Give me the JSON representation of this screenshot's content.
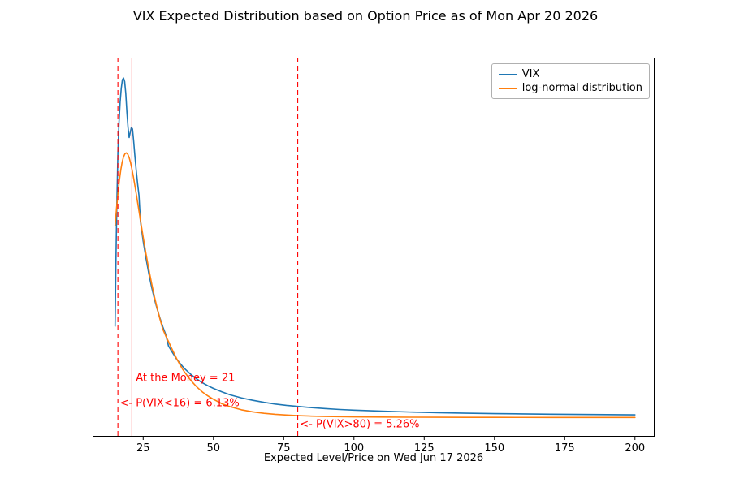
{
  "chart_data": {
    "type": "line",
    "title": "VIX Expected Distribution based on Option Price as of Mon Apr 20 2026",
    "xlabel": "Expected Level/Price on Wed Jun 17 2026",
    "ylabel": "",
    "xlim": [
      7,
      207
    ],
    "ylim": [
      -0.055,
      1.06
    ],
    "x_ticks": [
      25,
      50,
      75,
      100,
      125,
      150,
      175,
      200
    ],
    "grid": false,
    "legend_position": "upper right",
    "series": [
      {
        "name": "VIX",
        "color": "#1f77b4",
        "points": [
          [
            15,
            0.27
          ],
          [
            15.3,
            0.46
          ],
          [
            15.6,
            0.62
          ],
          [
            16,
            0.78
          ],
          [
            16.4,
            0.87
          ],
          [
            16.8,
            0.93
          ],
          [
            17.2,
            0.97
          ],
          [
            17.6,
            0.995
          ],
          [
            18,
            1.0
          ],
          [
            18.4,
            0.99
          ],
          [
            18.8,
            0.955
          ],
          [
            19.2,
            0.9
          ],
          [
            19.6,
            0.855
          ],
          [
            20,
            0.825
          ],
          [
            20.4,
            0.84
          ],
          [
            20.8,
            0.855
          ],
          [
            21.2,
            0.85
          ],
          [
            21.6,
            0.815
          ],
          [
            22,
            0.775
          ],
          [
            22.5,
            0.73
          ],
          [
            23,
            0.69
          ],
          [
            23.5,
            0.655
          ],
          [
            24,
            0.58
          ],
          [
            25,
            0.52
          ],
          [
            26,
            0.47
          ],
          [
            27,
            0.425
          ],
          [
            28,
            0.385
          ],
          [
            29,
            0.35
          ],
          [
            30,
            0.32
          ],
          [
            31,
            0.293
          ],
          [
            32,
            0.268
          ],
          [
            33,
            0.246
          ],
          [
            34,
            0.212
          ],
          [
            35,
            0.198
          ],
          [
            36,
            0.185
          ],
          [
            37,
            0.172
          ],
          [
            38,
            0.162
          ],
          [
            39,
            0.152
          ],
          [
            40,
            0.143
          ],
          [
            42,
            0.128
          ],
          [
            44,
            0.115
          ],
          [
            46,
            0.104
          ],
          [
            48,
            0.095
          ],
          [
            50,
            0.087
          ],
          [
            53,
            0.077
          ],
          [
            56,
            0.068
          ],
          [
            60,
            0.059
          ],
          [
            64,
            0.052
          ],
          [
            68,
            0.046
          ],
          [
            72,
            0.041
          ],
          [
            76,
            0.037
          ],
          [
            80,
            0.034
          ],
          [
            85,
            0.0305
          ],
          [
            90,
            0.0275
          ],
          [
            95,
            0.025
          ],
          [
            100,
            0.023
          ],
          [
            110,
            0.02
          ],
          [
            120,
            0.0175
          ],
          [
            130,
            0.0157
          ],
          [
            140,
            0.0142
          ],
          [
            150,
            0.013
          ],
          [
            160,
            0.012
          ],
          [
            170,
            0.0112
          ],
          [
            180,
            0.0105
          ],
          [
            190,
            0.0099
          ],
          [
            200,
            0.0094
          ]
        ]
      },
      {
        "name": "log-normal distribution",
        "color": "#ff7f0e",
        "points": [
          [
            15,
            0.565
          ],
          [
            15.5,
            0.615
          ],
          [
            16,
            0.658
          ],
          [
            16.5,
            0.697
          ],
          [
            17,
            0.728
          ],
          [
            17.5,
            0.752
          ],
          [
            18,
            0.768
          ],
          [
            18.5,
            0.777
          ],
          [
            19,
            0.78
          ],
          [
            19.5,
            0.776
          ],
          [
            20,
            0.766
          ],
          [
            20.5,
            0.751
          ],
          [
            21,
            0.732
          ],
          [
            21.5,
            0.71
          ],
          [
            22,
            0.686
          ],
          [
            22.5,
            0.661
          ],
          [
            23,
            0.635
          ],
          [
            23.5,
            0.609
          ],
          [
            24,
            0.583
          ],
          [
            25,
            0.532
          ],
          [
            26,
            0.483
          ],
          [
            27,
            0.438
          ],
          [
            28,
            0.396
          ],
          [
            29,
            0.357
          ],
          [
            30,
            0.322
          ],
          [
            31,
            0.29
          ],
          [
            32,
            0.261
          ],
          [
            33,
            0.242
          ],
          [
            34,
            0.225
          ],
          [
            35,
            0.207
          ],
          [
            36,
            0.19
          ],
          [
            37,
            0.173
          ],
          [
            38,
            0.158
          ],
          [
            39,
            0.144
          ],
          [
            40,
            0.132
          ],
          [
            42,
            0.11
          ],
          [
            44,
            0.092
          ],
          [
            46,
            0.077
          ],
          [
            48,
            0.065
          ],
          [
            50,
            0.055
          ],
          [
            53,
            0.042
          ],
          [
            56,
            0.033
          ],
          [
            60,
            0.024
          ],
          [
            64,
            0.018
          ],
          [
            68,
            0.0138
          ],
          [
            72,
            0.0108
          ],
          [
            76,
            0.0086
          ],
          [
            80,
            0.007
          ],
          [
            85,
            0.0055
          ],
          [
            90,
            0.0045
          ],
          [
            95,
            0.0038
          ],
          [
            100,
            0.0033
          ],
          [
            110,
            0.0027
          ],
          [
            120,
            0.0023
          ],
          [
            130,
            0.0021
          ],
          [
            140,
            0.0019
          ],
          [
            150,
            0.0018
          ],
          [
            160,
            0.0017
          ],
          [
            170,
            0.0016
          ],
          [
            180,
            0.0016
          ],
          [
            190,
            0.0015
          ],
          [
            200,
            0.0015
          ]
        ]
      }
    ],
    "vlines": [
      {
        "x": 16,
        "style": "dashed",
        "color": "#ff0000"
      },
      {
        "x": 21,
        "style": "solid",
        "color": "#ff0000"
      },
      {
        "x": 80,
        "style": "dashed",
        "color": "#ff0000"
      }
    ],
    "annotations": [
      {
        "text": "At the Money = 21",
        "x": 21.8,
        "y": 0.118,
        "color": "#ff0000"
      },
      {
        "text": "<- P(VIX<16) = 6.13%",
        "x": 16.1,
        "y": 0.042,
        "color": "#ff0000"
      },
      {
        "text": "<- P(VIX>80) = 5.26%",
        "x": 80.2,
        "y": -0.018,
        "color": "#ff0000"
      }
    ]
  }
}
